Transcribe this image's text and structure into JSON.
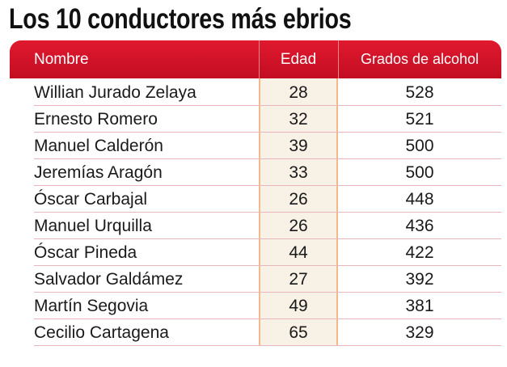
{
  "title": "Los 10 conductores más ebrios",
  "table": {
    "header": [
      "Nombre",
      "Edad",
      "Grados de alcohol"
    ],
    "rows": [
      [
        "Willian Jurado Zelaya",
        28,
        528
      ],
      [
        "Ernesto Romero",
        32,
        521
      ],
      [
        "Manuel Calderón",
        39,
        500
      ],
      [
        "Jeremías Aragón",
        33,
        500
      ],
      [
        "Óscar Carbajal",
        26,
        448
      ],
      [
        "Manuel Urquilla",
        26,
        436
      ],
      [
        "Óscar Pineda",
        44,
        422
      ],
      [
        "Salvador Galdámez",
        27,
        392
      ],
      [
        "Martín Segovia",
        49,
        381
      ],
      [
        "Cecilio Cartagena",
        65,
        329
      ]
    ]
  }
}
